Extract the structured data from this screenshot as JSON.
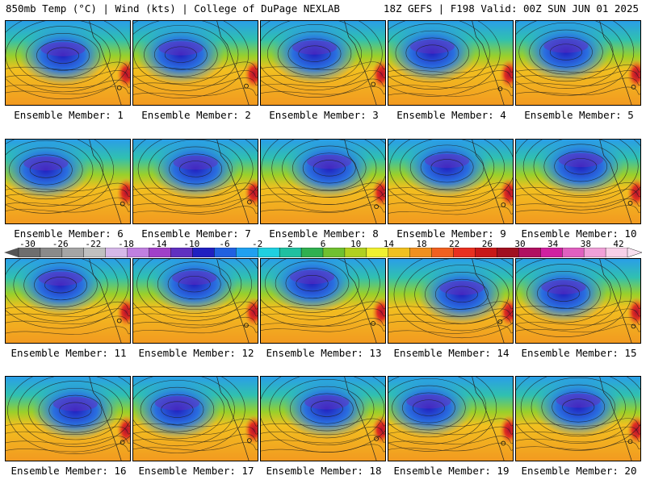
{
  "header": {
    "left": "850mb Temp (°C) | Wind (kts) | College of DuPage NEXLAB",
    "right": "18Z GEFS | F198 Valid: 00Z SUN JUN 01 2025"
  },
  "panels": [
    {
      "label": "Ensemble Member: 1"
    },
    {
      "label": "Ensemble Member: 2"
    },
    {
      "label": "Ensemble Member: 3"
    },
    {
      "label": "Ensemble Member: 4"
    },
    {
      "label": "Ensemble Member: 5"
    },
    {
      "label": "Ensemble Member: 6"
    },
    {
      "label": "Ensemble Member: 7"
    },
    {
      "label": "Ensemble Member: 8"
    },
    {
      "label": "Ensemble Member: 9"
    },
    {
      "label": "Ensemble Member: 10"
    },
    {
      "label": "Ensemble Member: 11"
    },
    {
      "label": "Ensemble Member: 12"
    },
    {
      "label": "Ensemble Member: 13"
    },
    {
      "label": "Ensemble Member: 14"
    },
    {
      "label": "Ensemble Member: 15"
    },
    {
      "label": "Ensemble Member: 16"
    },
    {
      "label": "Ensemble Member: 17"
    },
    {
      "label": "Ensemble Member: 18"
    },
    {
      "label": "Ensemble Member: 19"
    },
    {
      "label": "Ensemble Member: 20"
    }
  ],
  "colorbar": {
    "ticks": [
      "-30",
      "-26",
      "-22",
      "-18",
      "-14",
      "-10",
      "-6",
      "-2",
      "2",
      "6",
      "10",
      "14",
      "18",
      "22",
      "26",
      "30",
      "34",
      "38",
      "42"
    ],
    "colors": [
      "#6e6e6e",
      "#8a8a8a",
      "#a5a5a5",
      "#c0c0c0",
      "#d6b8e8",
      "#c080e0",
      "#a040c8",
      "#6030c0",
      "#2020c0",
      "#2060e0",
      "#20a0f0",
      "#20d0e0",
      "#20c0a0",
      "#30b050",
      "#70c030",
      "#b0d020",
      "#f0f030",
      "#f0c020",
      "#f09020",
      "#f06020",
      "#e83020",
      "#c81818",
      "#a01020",
      "#b01060",
      "#d020a0",
      "#e060c0",
      "#f0a0d8",
      "#f8d0e8"
    ]
  }
}
